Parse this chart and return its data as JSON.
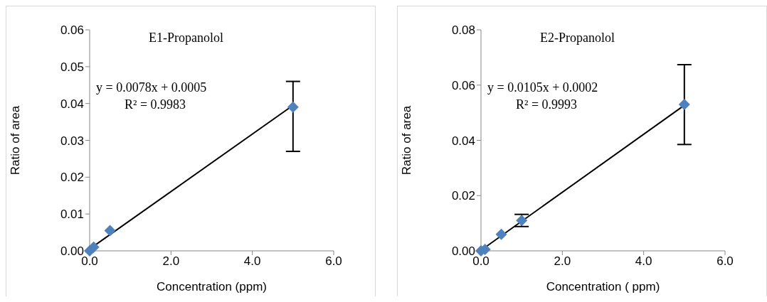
{
  "chart_data": [
    {
      "type": "scatter",
      "title": "E1-Propanolol",
      "xlabel": "Concentration (ppm)",
      "ylabel": "Ratio of area",
      "marker": "diamond",
      "annotations": [
        "y = 0.0078x + 0.0005",
        "R² = 0.9983"
      ],
      "xlim": [
        0,
        6
      ],
      "xticks": [
        {
          "value": 0,
          "label": "0.0"
        },
        {
          "value": 2,
          "label": "2.0"
        },
        {
          "value": 4,
          "label": "4.0"
        },
        {
          "value": 6,
          "label": "6.0"
        }
      ],
      "ylim": [
        0,
        0.06
      ],
      "yticks": [
        {
          "value": 0,
          "label": "0.00"
        },
        {
          "value": 0.01,
          "label": "0.01"
        },
        {
          "value": 0.02,
          "label": "0.02"
        },
        {
          "value": 0.03,
          "label": "0.03"
        },
        {
          "value": 0.04,
          "label": "0.04"
        },
        {
          "value": 0.05,
          "label": "0.05"
        },
        {
          "value": 0.06,
          "label": "0.06"
        }
      ],
      "series": [
        {
          "color": "#4f81bd",
          "x": [
            0,
            0.1,
            0.5,
            5
          ],
          "values": [
            0,
            0.001,
            0.0055,
            0.039
          ],
          "errors": [
            null,
            null,
            null,
            [
              0.027,
              0.046
            ]
          ]
        },
        {
          "type": "line",
          "color": "#000000",
          "marker": "none",
          "x": [
            0,
            5
          ],
          "values": [
            0.0005,
            0.0395
          ]
        }
      ]
    },
    {
      "type": "scatter",
      "title": "E2-Propanolol",
      "xlabel": "Concentration ( ppm)",
      "ylabel": "Ratio of area",
      "marker": "diamond",
      "annotations": [
        "y = 0.0105x + 0.0002",
        "R² = 0.9993"
      ],
      "xlim": [
        0,
        6
      ],
      "xticks": [
        {
          "value": 0,
          "label": "0.0"
        },
        {
          "value": 2,
          "label": "2.0"
        },
        {
          "value": 4,
          "label": "4.0"
        },
        {
          "value": 6,
          "label": "6.0"
        }
      ],
      "ylim": [
        0,
        0.08
      ],
      "yticks": [
        {
          "value": 0,
          "label": "0.00"
        },
        {
          "value": 0.02,
          "label": "0.02"
        },
        {
          "value": 0.04,
          "label": "0.04"
        },
        {
          "value": 0.06,
          "label": "0.06"
        },
        {
          "value": 0.08,
          "label": "0.08"
        }
      ],
      "series": [
        {
          "color": "#4f81bd",
          "x": [
            0,
            0.1,
            0.5,
            1,
            5
          ],
          "values": [
            0,
            0.0005,
            0.006,
            0.011,
            0.053
          ],
          "errors": [
            null,
            null,
            null,
            [
              0.0088,
              0.0132
            ],
            [
              0.0385,
              0.0674
            ]
          ]
        },
        {
          "type": "line",
          "color": "#000000",
          "marker": "none",
          "x": [
            0,
            5
          ],
          "values": [
            0.0002,
            0.0527
          ]
        }
      ]
    }
  ]
}
